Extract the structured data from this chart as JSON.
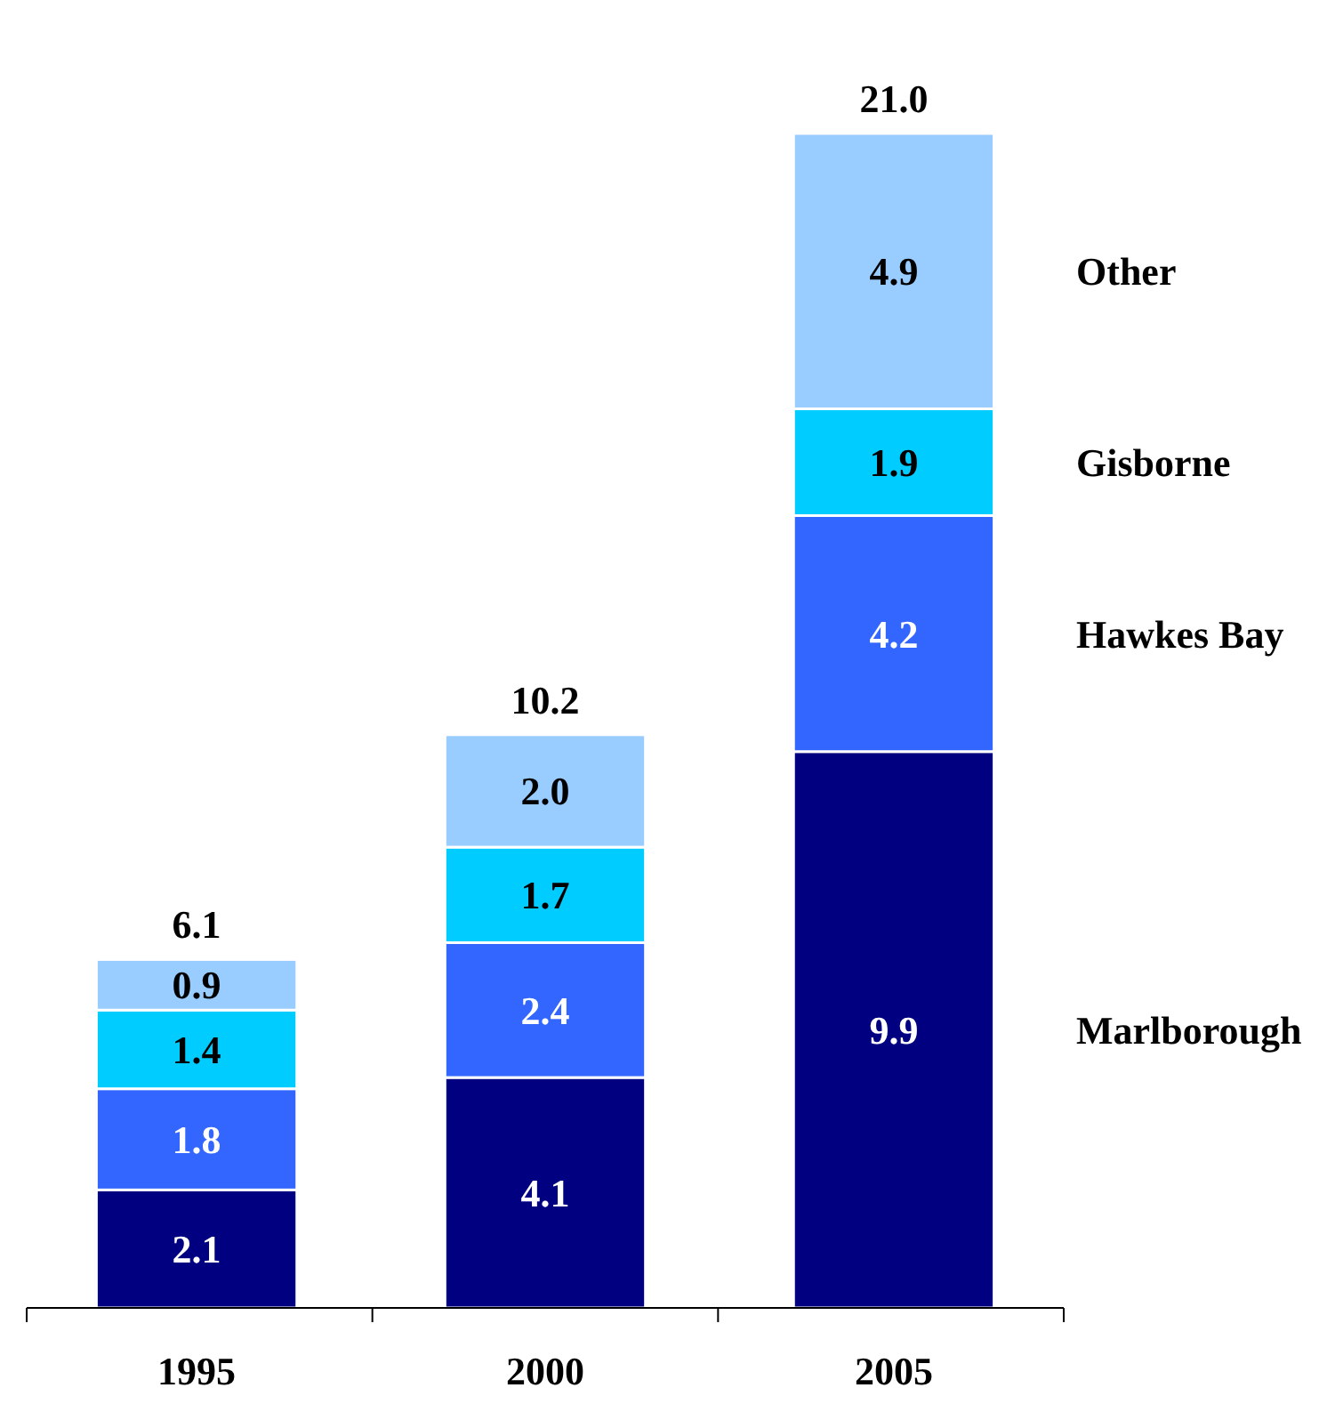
{
  "chart_data": {
    "type": "bar",
    "stacked": true,
    "categories": [
      "1995",
      "2000",
      "2005"
    ],
    "series": [
      {
        "name": "Marlborough",
        "color": "#000080",
        "values": [
          2.1,
          4.1,
          9.9
        ],
        "value_labels": [
          "2.1",
          "4.1",
          "9.9"
        ]
      },
      {
        "name": "Hawkes Bay",
        "color": "#3366ff",
        "values": [
          1.8,
          2.4,
          4.2
        ],
        "value_labels": [
          "1.8",
          "2.4",
          "4.2"
        ]
      },
      {
        "name": "Gisborne",
        "color": "#00ccff",
        "values": [
          1.4,
          1.7,
          1.9
        ],
        "value_labels": [
          "1.4",
          "1.7",
          "1.9"
        ]
      },
      {
        "name": "Other",
        "color": "#99ccff",
        "values": [
          0.9,
          2.0,
          4.9
        ],
        "value_labels": [
          "0.9",
          "2.0",
          "4.9"
        ]
      }
    ],
    "totals": [
      "6.1",
      "10.2",
      "21.0"
    ]
  }
}
